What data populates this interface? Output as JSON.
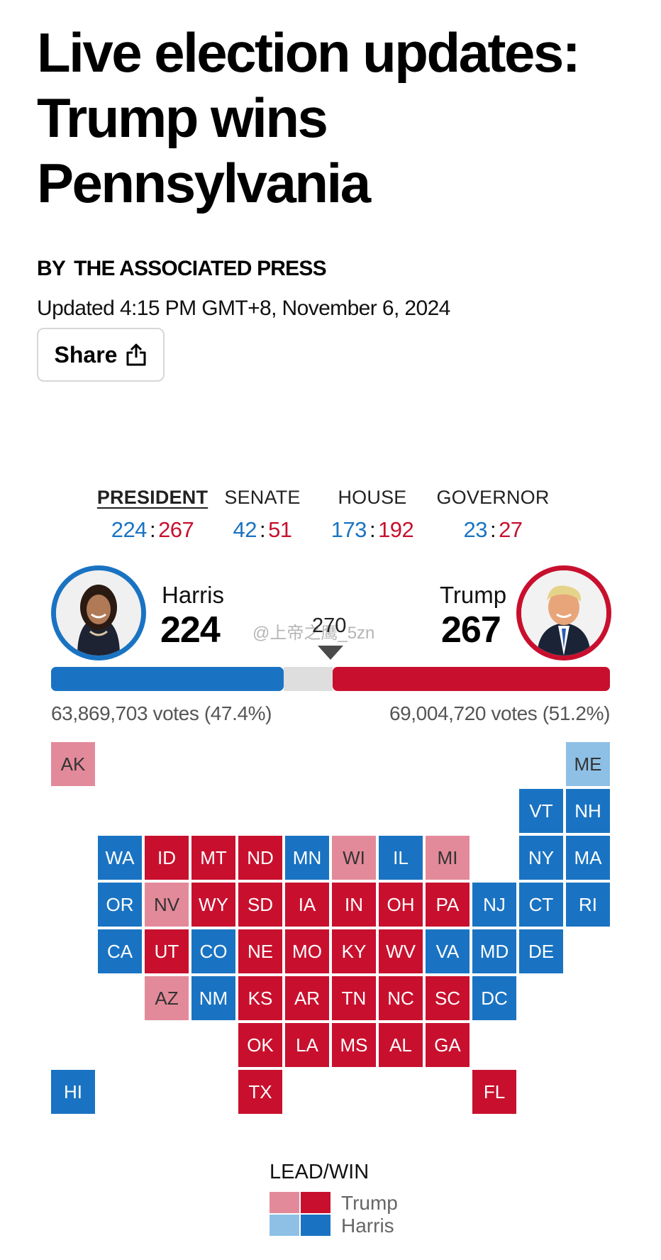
{
  "article": {
    "headline": "Live election updates: Trump wins Pennsylvania",
    "byline_prefix": "BY",
    "byline_author": "THE ASSOCIATED PRESS",
    "updated": "Updated 4:15 PM GMT+8, November 6, 2024",
    "share_label": "Share"
  },
  "tabs": [
    {
      "label": "PRESIDENT",
      "dem": "224",
      "rep": "267",
      "active": true
    },
    {
      "label": "SENATE",
      "dem": "42",
      "rep": "51",
      "active": false
    },
    {
      "label": "HOUSE",
      "dem": "173",
      "rep": "192",
      "active": false
    },
    {
      "label": "GOVERNOR",
      "dem": "23",
      "rep": "27",
      "active": false
    }
  ],
  "candidates": {
    "harris": {
      "name": "Harris",
      "electoral": "224",
      "popular": "63,869,703 votes (47.4%)"
    },
    "trump": {
      "name": "Trump",
      "electoral": "267",
      "popular": "69,004,720 votes (51.2%)"
    }
  },
  "threshold_label": "270",
  "watermark": "@上帝之鹰_5zn",
  "bar": {
    "harris_ev": 224,
    "trump_ev": 267,
    "total_ev": 538,
    "threshold_ev": 270
  },
  "colors": {
    "harris_win": "#1a73c2",
    "harris_lead": "#8ec0e6",
    "trump_win": "#c8102e",
    "trump_lead": "#e38a9a",
    "accent_text_dem": "#1a73c2",
    "accent_text_rep": "#c8102e"
  },
  "states": [
    {
      "abbr": "AK",
      "status": "trump_lead"
    },
    {
      "abbr": "ME",
      "status": "harris_lead"
    },
    {
      "abbr": "VT",
      "status": "harris_win"
    },
    {
      "abbr": "NH",
      "status": "harris_win"
    },
    {
      "abbr": "WA",
      "status": "harris_win"
    },
    {
      "abbr": "ID",
      "status": "trump_win"
    },
    {
      "abbr": "MT",
      "status": "trump_win"
    },
    {
      "abbr": "ND",
      "status": "trump_win"
    },
    {
      "abbr": "MN",
      "status": "harris_win"
    },
    {
      "abbr": "WI",
      "status": "trump_lead"
    },
    {
      "abbr": "IL",
      "status": "harris_win"
    },
    {
      "abbr": "MI",
      "status": "trump_lead"
    },
    {
      "abbr": "NY",
      "status": "harris_win"
    },
    {
      "abbr": "MA",
      "status": "harris_win"
    },
    {
      "abbr": "OR",
      "status": "harris_win"
    },
    {
      "abbr": "NV",
      "status": "trump_lead"
    },
    {
      "abbr": "WY",
      "status": "trump_win"
    },
    {
      "abbr": "SD",
      "status": "trump_win"
    },
    {
      "abbr": "IA",
      "status": "trump_win"
    },
    {
      "abbr": "IN",
      "status": "trump_win"
    },
    {
      "abbr": "OH",
      "status": "trump_win"
    },
    {
      "abbr": "PA",
      "status": "trump_win"
    },
    {
      "abbr": "NJ",
      "status": "harris_win"
    },
    {
      "abbr": "CT",
      "status": "harris_win"
    },
    {
      "abbr": "RI",
      "status": "harris_win"
    },
    {
      "abbr": "CA",
      "status": "harris_win"
    },
    {
      "abbr": "UT",
      "status": "trump_win"
    },
    {
      "abbr": "CO",
      "status": "harris_win"
    },
    {
      "abbr": "NE",
      "status": "trump_win"
    },
    {
      "abbr": "MO",
      "status": "trump_win"
    },
    {
      "abbr": "KY",
      "status": "trump_win"
    },
    {
      "abbr": "WV",
      "status": "trump_win"
    },
    {
      "abbr": "VA",
      "status": "harris_win"
    },
    {
      "abbr": "MD",
      "status": "harris_win"
    },
    {
      "abbr": "DE",
      "status": "harris_win"
    },
    {
      "abbr": "AZ",
      "status": "trump_lead"
    },
    {
      "abbr": "NM",
      "status": "harris_win"
    },
    {
      "abbr": "KS",
      "status": "trump_win"
    },
    {
      "abbr": "AR",
      "status": "trump_win"
    },
    {
      "abbr": "TN",
      "status": "trump_win"
    },
    {
      "abbr": "NC",
      "status": "trump_win"
    },
    {
      "abbr": "SC",
      "status": "trump_win"
    },
    {
      "abbr": "DC",
      "status": "harris_win"
    },
    {
      "abbr": "OK",
      "status": "trump_win"
    },
    {
      "abbr": "LA",
      "status": "trump_win"
    },
    {
      "abbr": "MS",
      "status": "trump_win"
    },
    {
      "abbr": "AL",
      "status": "trump_win"
    },
    {
      "abbr": "GA",
      "status": "trump_win"
    },
    {
      "abbr": "HI",
      "status": "harris_win"
    },
    {
      "abbr": "TX",
      "status": "trump_win"
    },
    {
      "abbr": "FL",
      "status": "trump_win"
    }
  ],
  "legend": {
    "title": "LEAD/WIN",
    "trump_label": "Trump",
    "harris_label": "Harris"
  }
}
